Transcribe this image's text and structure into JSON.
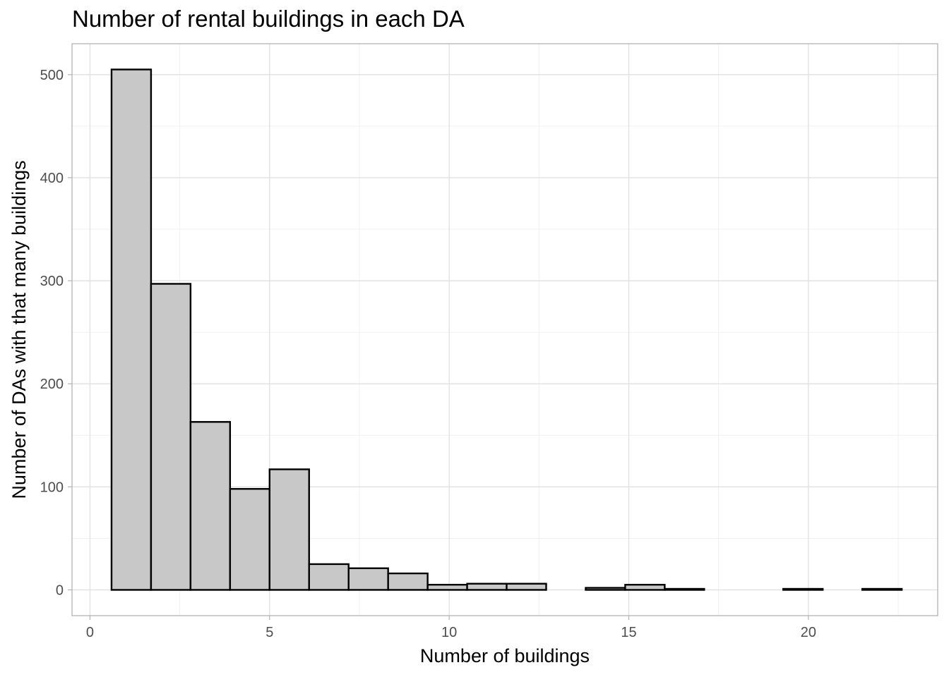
{
  "chart_data": {
    "type": "bar",
    "title": "Number of rental buildings in each DA",
    "xlabel": "Number of buildings",
    "ylabel": "Number of DAs with that many buildings",
    "xlim": [
      -0.5,
      23.6
    ],
    "ylim": [
      -25,
      530
    ],
    "x_ticks": [
      0,
      5,
      10,
      15,
      20
    ],
    "y_ticks": [
      0,
      100,
      200,
      300,
      400,
      500
    ],
    "bin_width": 1.1,
    "bin_start": 0.6,
    "values": [
      505,
      297,
      163,
      98,
      117,
      25,
      21,
      16,
      5,
      6,
      6,
      0,
      2,
      5,
      1,
      0,
      0,
      1,
      0,
      1
    ],
    "bar_fill": "#c8c8c8",
    "bar_stroke": "#000000",
    "grid": true,
    "legend": "none"
  }
}
